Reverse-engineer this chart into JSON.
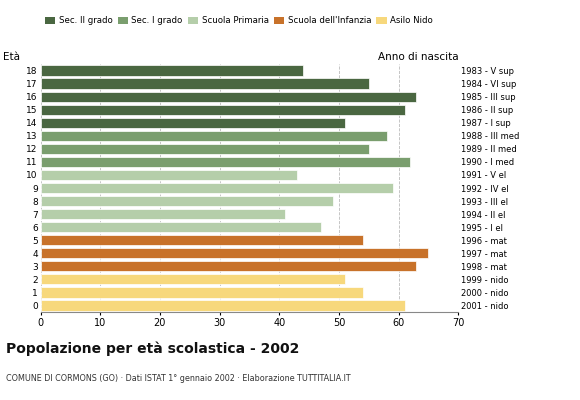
{
  "ages": [
    18,
    17,
    16,
    15,
    14,
    13,
    12,
    11,
    10,
    9,
    8,
    7,
    6,
    5,
    4,
    3,
    2,
    1,
    0
  ],
  "values": [
    44,
    55,
    63,
    61,
    51,
    58,
    55,
    62,
    43,
    59,
    49,
    41,
    47,
    54,
    65,
    63,
    51,
    54,
    61
  ],
  "right_labels": [
    "1983 - V sup",
    "1984 - VI sup",
    "1985 - III sup",
    "1986 - II sup",
    "1987 - I sup",
    "1988 - III med",
    "1989 - II med",
    "1990 - I med",
    "1991 - V el",
    "1992 - IV el",
    "1993 - III el",
    "1994 - II el",
    "1995 - I el",
    "1996 - mat",
    "1997 - mat",
    "1998 - mat",
    "1999 - nido",
    "2000 - nido",
    "2001 - nido"
  ],
  "colors": [
    "#4a6741",
    "#4a6741",
    "#4a6741",
    "#4a6741",
    "#4a6741",
    "#7a9e6e",
    "#7a9e6e",
    "#7a9e6e",
    "#b5ceaa",
    "#b5ceaa",
    "#b5ceaa",
    "#b5ceaa",
    "#b5ceaa",
    "#c8722a",
    "#c8722a",
    "#c8722a",
    "#f7d87c",
    "#f7d87c",
    "#f7d87c"
  ],
  "legend_labels": [
    "Sec. II grado",
    "Sec. I grado",
    "Scuola Primaria",
    "Scuola dell'Infanzia",
    "Asilo Nido"
  ],
  "legend_colors": [
    "#4a6741",
    "#7a9e6e",
    "#b5ceaa",
    "#c8722a",
    "#f7d87c"
  ],
  "title": "Popolazione per età scolastica - 2002",
  "subtitle": "COMUNE DI CORMONS (GO) · Dati ISTAT 1° gennaio 2002 · Elaborazione TUTTITALIA.IT",
  "ylabel_left": "Età",
  "ylabel_right": "Anno di nascita",
  "xlim": [
    0,
    70
  ],
  "xticks": [
    0,
    10,
    20,
    30,
    40,
    50,
    60,
    70
  ],
  "bar_height": 0.78,
  "background_color": "#ffffff",
  "grid_color": "#bbbbbb"
}
